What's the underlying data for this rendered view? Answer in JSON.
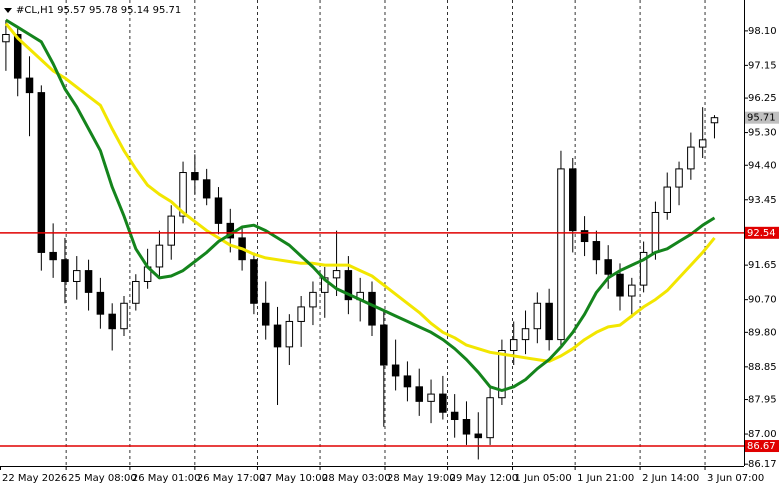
{
  "chart_data": {
    "type": "candlestick",
    "title": "#CL,H1  95.57 95.78 95.14 95.71",
    "xlim": [
      -0.5,
      62.5
    ],
    "ylim": [
      86.12,
      98.95
    ],
    "yticks": [
      {
        "value": 98.1,
        "label": "98.10"
      },
      97.15,
      96.25,
      {
        "value": 95.3,
        "label": "95.30"
      },
      {
        "value": 94.4,
        "label": "94.40"
      },
      93.45,
      91.65,
      {
        "value": 90.7,
        "label": "90.70"
      },
      {
        "value": 89.8,
        "label": "89.80"
      },
      88.85,
      87.95,
      {
        "value": 87,
        "label": "87.00"
      },
      86.17
    ],
    "xticks": [
      {
        "value": -0.5,
        "label": "22 May 2026"
      },
      {
        "value": 5.1,
        "label": "25 May 08:00"
      },
      {
        "value": 10.5,
        "label": "26 May 01:00"
      },
      {
        "value": 16.0,
        "label": "26 May 17:00"
      },
      {
        "value": 21.3,
        "label": "27 May 10:00"
      },
      {
        "value": 26.6,
        "label": "28 May 03:00"
      },
      {
        "value": 32.1,
        "label": "28 May 19:00"
      },
      {
        "value": 37.4,
        "label": "29 May 12:00"
      },
      {
        "value": 42.9,
        "label": "1 Jun 05:00"
      },
      {
        "value": 48.2,
        "label": "1 Jun 21:00"
      },
      {
        "value": 53.7,
        "label": "2 Jun 14:00"
      },
      {
        "value": 59.2,
        "label": "3 Jun 07:00"
      }
    ],
    "vgrid": true,
    "up_color": "#ffffff",
    "down_color": "#000000",
    "open": [
      97.8,
      98.0,
      96.8,
      96.4,
      92.0,
      91.8,
      91.2,
      91.5,
      90.9,
      90.3,
      89.9,
      90.6,
      91.2,
      91.6,
      92.2,
      93.0,
      94.2,
      94.0,
      93.5,
      92.8,
      92.4,
      91.8,
      90.6,
      90.0,
      89.4,
      90.1,
      90.5,
      90.9,
      91.3,
      91.5,
      90.7,
      90.9,
      90.0,
      88.9,
      88.6,
      88.3,
      87.9,
      88.1,
      87.6,
      87.4,
      87.0,
      86.9,
      88.0,
      89.3,
      89.6,
      89.9,
      90.6,
      89.6,
      94.3,
      92.6,
      92.3,
      91.8,
      91.4,
      90.8,
      91.1,
      92.0,
      93.1,
      93.8,
      94.3,
      94.9,
      95.57
    ],
    "high": [
      98.4,
      98.2,
      97.4,
      96.6,
      92.8,
      92.4,
      91.9,
      91.8,
      91.3,
      90.6,
      90.8,
      91.4,
      92.1,
      92.6,
      93.3,
      94.5,
      94.7,
      94.3,
      93.8,
      93.2,
      92.7,
      92.0,
      91.2,
      90.5,
      90.3,
      90.8,
      91.2,
      91.6,
      92.6,
      91.9,
      91.3,
      91.2,
      90.4,
      89.6,
      89.0,
      88.8,
      88.5,
      88.6,
      88.1,
      87.9,
      87.6,
      88.3,
      89.6,
      90.1,
      90.4,
      90.9,
      91.0,
      94.8,
      94.6,
      93.0,
      92.6,
      92.2,
      91.7,
      91.3,
      92.3,
      93.4,
      94.2,
      94.5,
      95.3,
      96.0,
      95.78
    ],
    "low": [
      97.0,
      96.3,
      95.2,
      91.5,
      91.3,
      90.6,
      90.7,
      90.4,
      89.9,
      89.3,
      89.7,
      90.4,
      91.0,
      91.3,
      91.8,
      92.8,
      93.6,
      93.3,
      92.5,
      92.0,
      91.5,
      90.3,
      89.6,
      87.8,
      88.9,
      89.4,
      90.0,
      90.2,
      90.8,
      90.3,
      90.1,
      89.7,
      87.2,
      88.2,
      87.9,
      87.5,
      87.3,
      87.4,
      86.9,
      86.7,
      86.3,
      86.7,
      87.8,
      88.9,
      89.2,
      89.5,
      89.3,
      89.4,
      92.0,
      91.9,
      91.4,
      91.0,
      90.4,
      90.2,
      90.9,
      91.8,
      92.9,
      93.3,
      94.0,
      94.6,
      95.14
    ],
    "close": [
      98.0,
      96.8,
      96.4,
      92.0,
      91.8,
      91.2,
      91.5,
      90.9,
      90.3,
      89.9,
      90.6,
      91.2,
      91.6,
      92.2,
      93.0,
      94.2,
      94.0,
      93.5,
      92.8,
      92.4,
      91.8,
      90.6,
      90.0,
      89.4,
      90.1,
      90.5,
      90.9,
      91.3,
      91.5,
      90.7,
      90.9,
      90.0,
      88.9,
      88.6,
      88.3,
      87.9,
      88.1,
      87.6,
      87.4,
      87.0,
      86.9,
      88.0,
      89.3,
      89.6,
      89.9,
      90.6,
      89.6,
      94.3,
      92.6,
      92.3,
      91.8,
      91.4,
      90.8,
      91.1,
      92.0,
      93.1,
      93.8,
      94.3,
      94.9,
      95.1,
      95.71
    ],
    "series": [
      {
        "color": "#f2e600",
        "values": [
          98.3,
          97.9,
          97.6,
          97.3,
          97.0,
          96.8,
          96.55,
          96.3,
          96.05,
          95.4,
          94.8,
          94.3,
          93.85,
          93.6,
          93.4,
          93.1,
          92.85,
          92.6,
          92.4,
          92.2,
          92.1,
          91.95,
          91.85,
          91.8,
          91.75,
          91.7,
          91.7,
          91.65,
          91.65,
          91.65,
          91.5,
          91.35,
          91.1,
          90.85,
          90.6,
          90.35,
          90.05,
          89.8,
          89.65,
          89.45,
          89.35,
          89.25,
          89.2,
          89.15,
          89.1,
          89.05,
          89.0,
          89.15,
          89.35,
          89.6,
          89.8,
          89.95,
          90.0,
          90.25,
          90.5,
          90.7,
          90.95,
          91.3,
          91.65,
          92.0,
          92.4
        ]
      },
      {
        "color": "#14841c",
        "values": [
          98.4,
          98.2,
          98.0,
          97.8,
          97.2,
          96.5,
          96.0,
          95.4,
          94.8,
          93.8,
          93.0,
          92.1,
          91.6,
          91.3,
          91.35,
          91.5,
          91.75,
          92.0,
          92.3,
          92.5,
          92.7,
          92.75,
          92.6,
          92.4,
          92.2,
          91.9,
          91.6,
          91.25,
          91.0,
          90.85,
          90.7,
          90.55,
          90.4,
          90.25,
          90.1,
          89.95,
          89.8,
          89.6,
          89.35,
          89.05,
          88.7,
          88.3,
          88.2,
          88.3,
          88.5,
          88.8,
          89.05,
          89.4,
          89.8,
          90.3,
          90.9,
          91.3,
          91.5,
          91.65,
          91.8,
          92.0,
          92.1,
          92.3,
          92.5,
          92.75,
          92.95
        ]
      }
    ],
    "hlines": [
      {
        "value": 92.54,
        "color": "#e00000"
      },
      {
        "value": 86.67,
        "color": "#e00000"
      }
    ],
    "last_price": 95.71,
    "last_price_color": "#c0c0c0"
  }
}
